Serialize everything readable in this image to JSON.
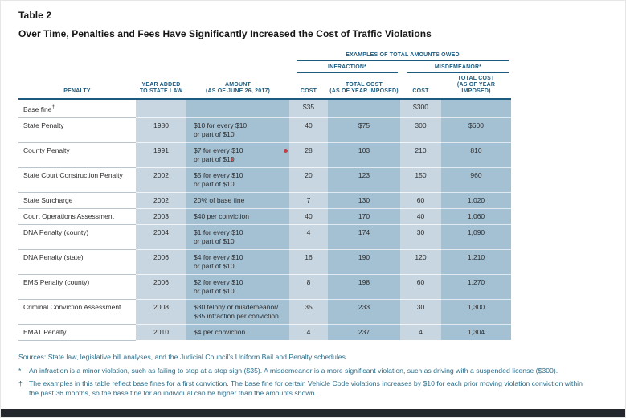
{
  "page": {
    "table_label": "Table 2",
    "title": "Over Time, Penalties and Fees Have Significantly Increased the Cost of Traffic Violations"
  },
  "colors": {
    "header_blue": "#1b5b80",
    "band_light": "#c8d6e1",
    "band_dark": "#a4c0d3",
    "footnote_teal": "#2b6d89",
    "annotation_red": "#c04048",
    "bottom_bar": "#23272d"
  },
  "table": {
    "group_header": "EXAMPLES OF TOTAL AMOUNTS OWED",
    "subgroups": {
      "infraction": "INFRACTION*",
      "misdemeanor": "MISDEMEANOR*"
    },
    "columns": [
      {
        "id": "penalty",
        "line2": "PENALTY"
      },
      {
        "id": "year",
        "line1": "YEAR ADDED",
        "line2": "TO STATE LAW"
      },
      {
        "id": "amount",
        "line1": "AMOUNT",
        "line2": "(AS OF JUNE 26, 2017)"
      },
      {
        "id": "inf_cost",
        "line2": "COST"
      },
      {
        "id": "inf_total",
        "line1": "TOTAL COST",
        "line2": "(AS OF YEAR IMPOSED)"
      },
      {
        "id": "mis_cost",
        "line2": "COST"
      },
      {
        "id": "mis_total",
        "line1": "TOTAL COST",
        "line2": "(AS OF YEAR IMPOSED)"
      }
    ],
    "rows": [
      {
        "penalty": "Base fine",
        "penalty_sup": "†",
        "year": "",
        "amount": "",
        "inf_cost": "$35",
        "inf_total": "",
        "mis_cost": "$300",
        "mis_total": ""
      },
      {
        "penalty": "State Penalty",
        "year": "1980",
        "amount": "$10 for every $10\nor part of $10",
        "inf_cost": "40",
        "inf_total": "$75",
        "mis_cost": "300",
        "mis_total": "$600"
      },
      {
        "penalty": "County Penalty",
        "year": "1991",
        "amount": "$7 for every $10\nor part of $10",
        "inf_cost": "28",
        "inf_total": "103",
        "mis_cost": "210",
        "mis_total": "810"
      },
      {
        "penalty": "State Court Construction Penalty",
        "year": "2002",
        "amount": "$5 for every $10\nor part of $10",
        "inf_cost": "20",
        "inf_total": "123",
        "mis_cost": "150",
        "mis_total": "960"
      },
      {
        "penalty": "State Surcharge",
        "year": "2002",
        "amount": "20% of base fine",
        "inf_cost": "7",
        "inf_total": "130",
        "mis_cost": "60",
        "mis_total": "1,020"
      },
      {
        "penalty": "Court Operations Assessment",
        "year": "2003",
        "amount": "$40 per conviction",
        "inf_cost": "40",
        "inf_total": "170",
        "mis_cost": "40",
        "mis_total": "1,060"
      },
      {
        "penalty": "DNA Penalty (county)",
        "year": "2004",
        "amount": "$1 for every $10\nor part of $10",
        "inf_cost": "4",
        "inf_total": "174",
        "mis_cost": "30",
        "mis_total": "1,090"
      },
      {
        "penalty": "DNA Penalty (state)",
        "year": "2006",
        "amount": "$4 for every $10\nor part of $10",
        "inf_cost": "16",
        "inf_total": "190",
        "mis_cost": "120",
        "mis_total": "1,210"
      },
      {
        "penalty": "EMS Penalty (county)",
        "year": "2006",
        "amount": "$2 for every $10\nor part of $10",
        "inf_cost": "8",
        "inf_total": "198",
        "mis_cost": "60",
        "mis_total": "1,270"
      },
      {
        "penalty": "Criminal Conviction Assessment",
        "year": "2008",
        "amount": "$30 felony or misdemeanor/\n$35 infraction per conviction",
        "inf_cost": "35",
        "inf_total": "233",
        "mis_cost": "30",
        "mis_total": "1,300"
      },
      {
        "penalty": "EMAT Penalty",
        "year": "2010",
        "amount": "$4 per conviction",
        "inf_cost": "4",
        "inf_total": "237",
        "mis_cost": "4",
        "mis_total": "1,304"
      }
    ]
  },
  "footnotes": {
    "sources": "Sources:  State law, legislative bill analyses, and the Judicial Council’s Uniform Bail and Penalty schedules.",
    "notes": [
      {
        "marker": "*",
        "text": "An infraction is a minor violation, such as failing to stop at a stop sign ($35). A misdemeanor is a more significant violation, such as driving with a suspended license ($300)."
      },
      {
        "marker": "†",
        "text": "The examples in this table reflect base fines for a first conviction. The base fine for certain Vehicle Code violations increases by $10 for each prior moving violation conviction within the past 36 months, so the base fine for an individual can be higher than the amounts shown."
      }
    ]
  }
}
